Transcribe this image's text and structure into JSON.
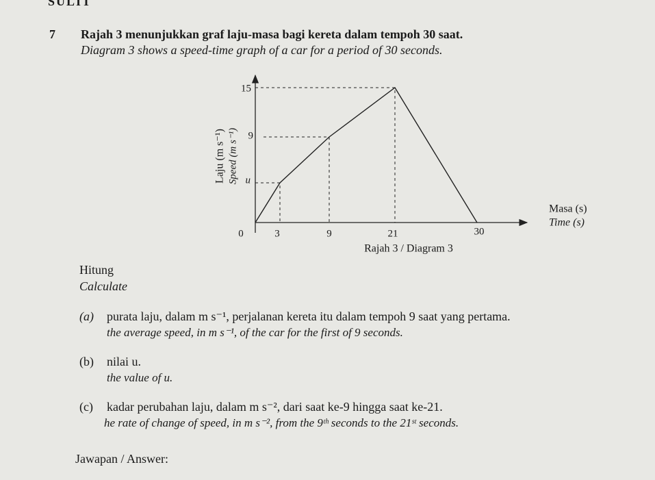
{
  "header": {
    "page_label": "SULIT"
  },
  "question": {
    "number": "7",
    "text_ms": "Rajah 3 menunjukkan graf laju-masa bagi kereta dalam tempoh 30 saat.",
    "text_en": "Diagram 3 shows a speed-time graph of a car for a period of 30 seconds."
  },
  "diagram": {
    "y_label_ms": "Laju (m s⁻¹)",
    "y_label_en": "Speed (m s⁻¹)",
    "x_label_ms": "Masa (s)",
    "x_label_en": "Time (s)",
    "y_ticks": [
      "15",
      "9",
      "u"
    ],
    "x_ticks": [
      "0",
      "3",
      "9",
      "21",
      "30"
    ],
    "caption": "Rajah 3 / Diagram 3"
  },
  "instruction": {
    "ms": "Hitung",
    "en": "Calculate"
  },
  "parts": [
    {
      "label": "(a)",
      "ms": "purata laju, dalam m s⁻¹, perjalanan kereta itu dalam tempoh 9 saat yang pertama.",
      "en": "the average speed, in m s⁻¹, of the car for the first of 9 seconds."
    },
    {
      "label": "(b)",
      "ms": "nilai u.",
      "en": "the value of u."
    },
    {
      "label": "(c)",
      "ms": "kadar perubahan laju, dalam m s⁻², dari saat ke-9 hingga saat ke-21.",
      "en": "he rate of change of speed, in m s⁻², from the 9ᵗʰ seconds to the 21ˢᵗ seconds."
    }
  ],
  "answer": "Jawapan / Answer:"
}
